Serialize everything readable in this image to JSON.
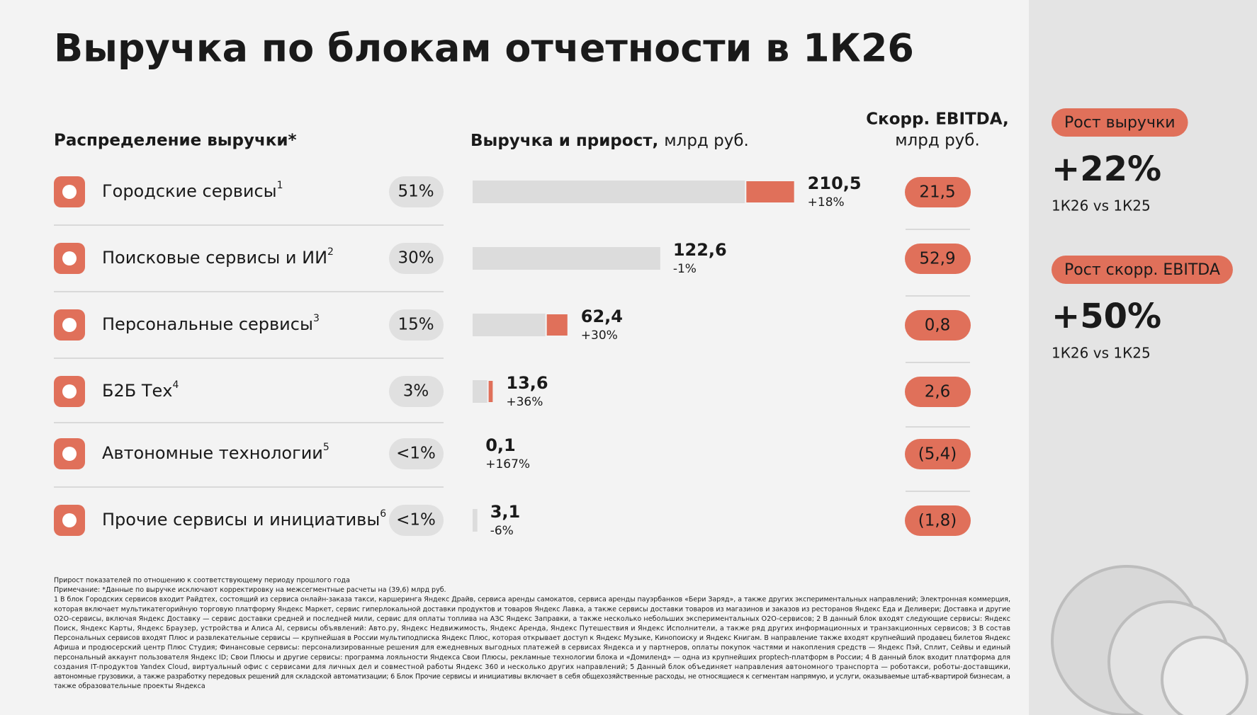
{
  "title": "Выручка по блокам отчетности в 1К26",
  "headers": {
    "distribution": "Распределение выручки*",
    "revenue_bold": "Выручка и прирост,",
    "revenue_unit": "млрд руб.",
    "ebitda_line1": "Скорр. EBITDA,",
    "ebitda_line2": "млрд руб."
  },
  "rows": [
    {
      "name": "Городские сервисы",
      "note": "1",
      "share": "51%",
      "revenue": 210.5,
      "revenue_label": "210,5",
      "growth": 18,
      "growth_label": "+18%",
      "ebitda": "21,5"
    },
    {
      "name": "Поисковые сервисы и ИИ",
      "note": "2",
      "share": "30%",
      "revenue": 122.6,
      "revenue_label": "122,6",
      "growth": -1,
      "growth_label": "-1%",
      "ebitda": "52,9"
    },
    {
      "name": "Персональные сервисы",
      "note": "3",
      "share": "15%",
      "revenue": 62.4,
      "revenue_label": "62,4",
      "growth": 30,
      "growth_label": "+30%",
      "ebitda": "0,8"
    },
    {
      "name": "Б2Б Тех",
      "note": "4",
      "share": "3%",
      "revenue": 13.6,
      "revenue_label": "13,6",
      "growth": 36,
      "growth_label": "+36%",
      "ebitda": "2,6"
    },
    {
      "name": "Автономные технологии",
      "note": "5",
      "share": "<1%",
      "revenue": 0.1,
      "revenue_label": "0,1",
      "growth": 167,
      "growth_label": "+167%",
      "ebitda": "(5,4)"
    },
    {
      "name": "Прочие сервисы и инициативы",
      "note": "6",
      "share": "<1%",
      "revenue": 3.1,
      "revenue_label": "3,1",
      "growth": -6,
      "growth_label": "-6%",
      "ebitda": "(1,8)"
    }
  ],
  "side": [
    {
      "pill": "Рост выручки",
      "value": "+22%",
      "caption": "1К26 vs 1К25"
    },
    {
      "pill": "Рост скорр. EBITDA",
      "value": "+50%",
      "caption": "1К26 vs 1К25"
    }
  ],
  "footnotes": [
    "Прирост показателей по отношению к соответствующему периоду прошлого года",
    "Примечание: *Данные по выручке исключают корректировку на межсегментные расчеты на (39,6) млрд руб.",
    "1 В блок Городских сервисов входит Райдтех, состоящий из сервиса онлайн-заказа такси, каршеринга Яндекс Драйв, сервиса аренды самокатов, сервиса аренды пауэрбанков «Бери Заряд», а также других экспериментальных направлений; Электронная коммерция,",
    "которая включает мультикатегорийную торговую платформу Яндекс Маркет, сервис гиперлокальной доставки продуктов и товаров Яндекс Лавка, а также сервисы доставки товаров из магазинов и заказов из ресторанов Яндекс Еда и Деливери; Доставка и другие",
    "O2O-сервисы, включая Яндекс Доставку — сервис доставки средней и последней мили, сервис для оплаты топлива на АЗС Яндекс Заправки, а также несколько небольших экспериментальных O2O-сервисов; 2 В данный блок входят следующие сервисы: Яндекс",
    "Поиск, Яндекс Карты, Яндекс Браузер, устройства и Алиса AI, сервисы объявлений: Авто.ру, Яндекс Недвижимость, Яндекс Аренда, Яндекс Путешествия и Яндекс Исполнители, а также ряд других информационных и транзакционных сервисов; 3 В состав",
    "Персональных сервисов входят Плюс и развлекательные сервисы — крупнейшая в России мультиподписка Яндекс Плюс, которая открывает доступ к Яндекс Музыке, Кинопоиску и Яндекс Книгам. В направление также входят крупнейший продавец билетов Яндекс",
    "Афиша и продюсерский центр Плюс Студия; Финансовые сервисы: персонализированные решения для ежедневных выгодных платежей в сервисах Яндекса и у партнеров, оплаты покупок частями и накопления средств — Яндекс Пэй, Сплит, Сейвы и единый",
    "персональный аккаунт пользователя Яндекс ID; Свои Плюсы и другие сервисы: программа лояльности Яндекса Свои Плюсы, рекламные технологии блока и «Домиленд» — одна из крупнейших proptech-платформ в России; 4 В данный блок входит платформа для",
    "создания IT-продуктов Yandex Cloud, виртуальный офис с сервисами для личных дел и совместной работы Яндекс 360 и несколько других направлений; 5 Данный блок объединяет направления автономного транспорта — роботакси, роботы-доставщики,",
    "автономные грузовики, а также разработку передовых решений для складской автоматизации; 6 Блок Прочие сервисы и инициативы включает в себя общехозяйственные расходы, не относящиеся к сегментам напрямую, и услуги, оказываемые штаб-квартирой бизнесам, а",
    "также образовательные проекты Яндекса"
  ]
}
